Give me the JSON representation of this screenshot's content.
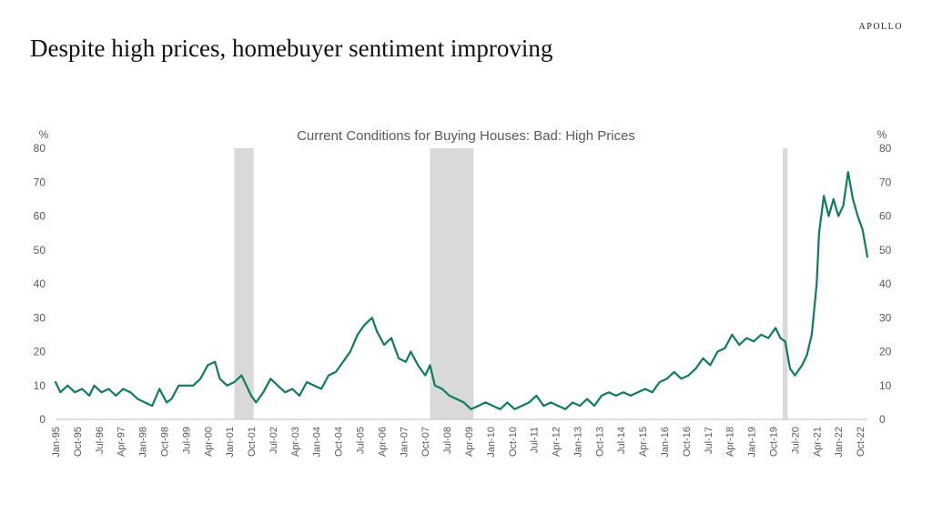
{
  "brand": "APOLLO",
  "headline": "Despite high prices, homebuyer sentiment improving",
  "chart_data": {
    "type": "line",
    "title": "Current Conditions for Buying Houses: Bad: High Prices",
    "y_unit_left": "%",
    "y_unit_right": "%",
    "ylim": [
      0,
      80
    ],
    "yticks": [
      0,
      10,
      20,
      30,
      40,
      50,
      60,
      70,
      80
    ],
    "x_range": [
      "1995-01",
      "2023-01"
    ],
    "x_tick_labels": [
      "Jan-95",
      "Oct-95",
      "Jul-96",
      "Apr-97",
      "Jan-98",
      "Oct-98",
      "Jul-99",
      "Apr-00",
      "Jan-01",
      "Oct-01",
      "Jul-02",
      "Apr-03",
      "Jan-04",
      "Oct-04",
      "Jul-05",
      "Apr-06",
      "Jan-07",
      "Oct-07",
      "Jul-08",
      "Apr-09",
      "Jan-10",
      "Oct-10",
      "Jul-11",
      "Apr-12",
      "Jan-13",
      "Oct-13",
      "Jul-14",
      "Apr-15",
      "Jan-16",
      "Oct-16",
      "Jul-17",
      "Apr-18",
      "Jan-19",
      "Oct-19",
      "Jul-20",
      "Apr-21",
      "Jan-22",
      "Oct-22"
    ],
    "recessions": [
      [
        "2001-03",
        "2001-11"
      ],
      [
        "2007-12",
        "2009-06"
      ],
      [
        "2020-02",
        "2020-04"
      ]
    ],
    "line_color": "#0f7b62",
    "shade_color": "#d9d9d9",
    "grid": false,
    "series": [
      {
        "points": [
          [
            "1995-01",
            11
          ],
          [
            "1995-03",
            8
          ],
          [
            "1995-06",
            10
          ],
          [
            "1995-09",
            8
          ],
          [
            "1995-12",
            9
          ],
          [
            "1996-03",
            7
          ],
          [
            "1996-05",
            10
          ],
          [
            "1996-08",
            8
          ],
          [
            "1996-11",
            9
          ],
          [
            "1997-02",
            7
          ],
          [
            "1997-05",
            9
          ],
          [
            "1997-08",
            8
          ],
          [
            "1997-11",
            6
          ],
          [
            "1998-02",
            5
          ],
          [
            "1998-05",
            4
          ],
          [
            "1998-08",
            9
          ],
          [
            "1998-11",
            5
          ],
          [
            "1999-01",
            6
          ],
          [
            "1999-04",
            10
          ],
          [
            "1999-07",
            10
          ],
          [
            "1999-10",
            10
          ],
          [
            "2000-01",
            12
          ],
          [
            "2000-04",
            16
          ],
          [
            "2000-07",
            17
          ],
          [
            "2000-09",
            12
          ],
          [
            "2000-12",
            10
          ],
          [
            "2001-03",
            11
          ],
          [
            "2001-06",
            13
          ],
          [
            "2001-08",
            10
          ],
          [
            "2001-10",
            7
          ],
          [
            "2001-12",
            5
          ],
          [
            "2002-03",
            8
          ],
          [
            "2002-06",
            12
          ],
          [
            "2002-09",
            10
          ],
          [
            "2002-12",
            8
          ],
          [
            "2003-03",
            9
          ],
          [
            "2003-06",
            7
          ],
          [
            "2003-09",
            11
          ],
          [
            "2003-12",
            10
          ],
          [
            "2004-03",
            9
          ],
          [
            "2004-06",
            13
          ],
          [
            "2004-09",
            14
          ],
          [
            "2004-12",
            17
          ],
          [
            "2005-03",
            20
          ],
          [
            "2005-06",
            25
          ],
          [
            "2005-09",
            28
          ],
          [
            "2005-12",
            30
          ],
          [
            "2006-02",
            26
          ],
          [
            "2006-05",
            22
          ],
          [
            "2006-08",
            24
          ],
          [
            "2006-11",
            18
          ],
          [
            "2007-02",
            17
          ],
          [
            "2007-04",
            20
          ],
          [
            "2007-07",
            16
          ],
          [
            "2007-10",
            13
          ],
          [
            "2007-12",
            16
          ],
          [
            "2008-02",
            10
          ],
          [
            "2008-05",
            9
          ],
          [
            "2008-08",
            7
          ],
          [
            "2008-11",
            6
          ],
          [
            "2009-02",
            5
          ],
          [
            "2009-05",
            3
          ],
          [
            "2009-08",
            4
          ],
          [
            "2009-11",
            5
          ],
          [
            "2010-02",
            4
          ],
          [
            "2010-05",
            3
          ],
          [
            "2010-08",
            5
          ],
          [
            "2010-11",
            3
          ],
          [
            "2011-02",
            4
          ],
          [
            "2011-05",
            5
          ],
          [
            "2011-08",
            7
          ],
          [
            "2011-11",
            4
          ],
          [
            "2012-02",
            5
          ],
          [
            "2012-05",
            4
          ],
          [
            "2012-08",
            3
          ],
          [
            "2012-11",
            5
          ],
          [
            "2013-02",
            4
          ],
          [
            "2013-05",
            6
          ],
          [
            "2013-08",
            4
          ],
          [
            "2013-11",
            7
          ],
          [
            "2014-02",
            8
          ],
          [
            "2014-05",
            7
          ],
          [
            "2014-08",
            8
          ],
          [
            "2014-11",
            7
          ],
          [
            "2015-02",
            8
          ],
          [
            "2015-05",
            9
          ],
          [
            "2015-08",
            8
          ],
          [
            "2015-11",
            11
          ],
          [
            "2016-02",
            12
          ],
          [
            "2016-05",
            14
          ],
          [
            "2016-08",
            12
          ],
          [
            "2016-11",
            13
          ],
          [
            "2017-02",
            15
          ],
          [
            "2017-05",
            18
          ],
          [
            "2017-08",
            16
          ],
          [
            "2017-11",
            20
          ],
          [
            "2018-02",
            21
          ],
          [
            "2018-05",
            25
          ],
          [
            "2018-08",
            22
          ],
          [
            "2018-11",
            24
          ],
          [
            "2019-02",
            23
          ],
          [
            "2019-05",
            25
          ],
          [
            "2019-08",
            24
          ],
          [
            "2019-11",
            27
          ],
          [
            "2020-01",
            24
          ],
          [
            "2020-03",
            23
          ],
          [
            "2020-05",
            15
          ],
          [
            "2020-07",
            13
          ],
          [
            "2020-10",
            16
          ],
          [
            "2020-12",
            19
          ],
          [
            "2021-02",
            25
          ],
          [
            "2021-04",
            40
          ],
          [
            "2021-05",
            55
          ],
          [
            "2021-07",
            66
          ],
          [
            "2021-09",
            60
          ],
          [
            "2021-11",
            65
          ],
          [
            "2022-01",
            60
          ],
          [
            "2022-03",
            63
          ],
          [
            "2022-05",
            73
          ],
          [
            "2022-07",
            65
          ],
          [
            "2022-09",
            60
          ],
          [
            "2022-11",
            56
          ],
          [
            "2023-01",
            48
          ]
        ]
      }
    ]
  }
}
